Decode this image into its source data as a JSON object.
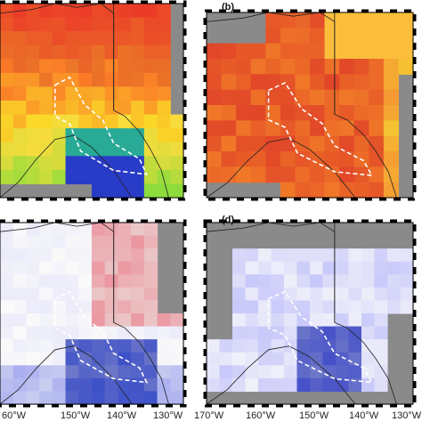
{
  "panels": [
    {
      "id": "a",
      "label": "",
      "scheme": "rainbow"
    },
    {
      "id": "b",
      "label": "(b)",
      "scheme": "warm"
    },
    {
      "id": "c",
      "label": "",
      "scheme": "diverging_red"
    },
    {
      "id": "d",
      "label": "(d)",
      "scheme": "diverging_blue"
    }
  ],
  "left_axis_ticks": [
    "60°W",
    "150°W",
    "140°W",
    "130°W"
  ],
  "right_axis_ticks": [
    "170°W",
    "160°W",
    "150°W",
    "140°W",
    "130°W"
  ],
  "colors": {
    "ocean": "#8a8a8a",
    "coast": "#222222",
    "study_outline": "#ffffff",
    "frame": "#000000"
  }
}
